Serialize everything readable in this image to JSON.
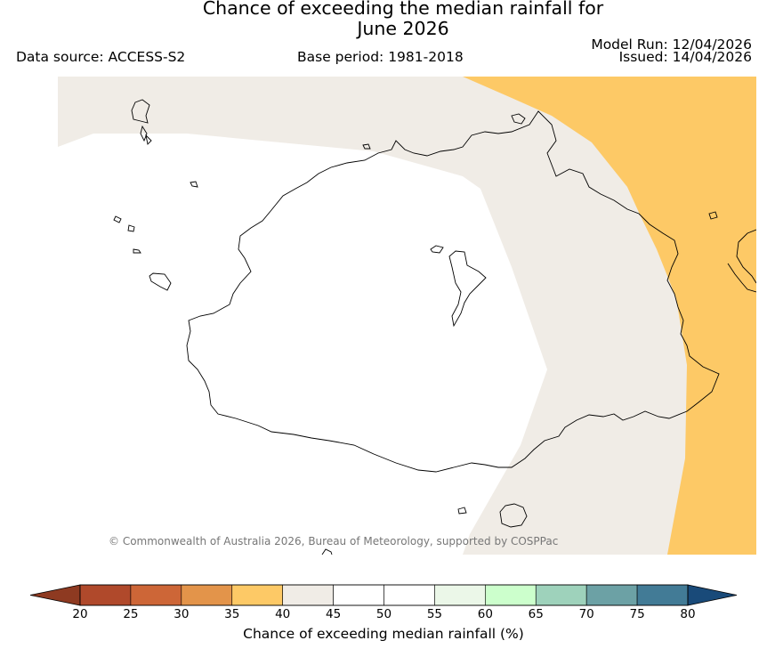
{
  "title": {
    "line1": "Chance of exceeding the median rainfall for",
    "line2": "June 2026"
  },
  "meta": {
    "data_source": "Data source: ACCESS-S2",
    "base_period": "Base period: 1981-2018",
    "model_run": "Model Run: 12/04/2026",
    "issued": "Issued: 14/04/2026"
  },
  "copyright": "© Commonwealth of Australia 2026, Bureau of Meteorology, supported by COSPPac",
  "colorbar": {
    "title": "Chance of exceeding median rainfall (%)",
    "ticks": [
      "20",
      "25",
      "30",
      "35",
      "40",
      "45",
      "50",
      "55",
      "60",
      "65",
      "70",
      "75",
      "80"
    ],
    "under_color": "#8e3a21",
    "over_color": "#194a79",
    "bin_colors": [
      "#b0492b",
      "#cd6637",
      "#e3944a",
      "#fdc966",
      "#f0ece6",
      "#ffffff",
      "#ffffff",
      "#ebf7e8",
      "#ccffcc",
      "#9ed2bb",
      "#6ca1a5",
      "#427b96"
    ]
  },
  "map_colors": {
    "band_40_45": "#f0ece6",
    "band_45_55": "#ffffff",
    "band_35_40": "#fdc966",
    "coastline": "#000000"
  }
}
